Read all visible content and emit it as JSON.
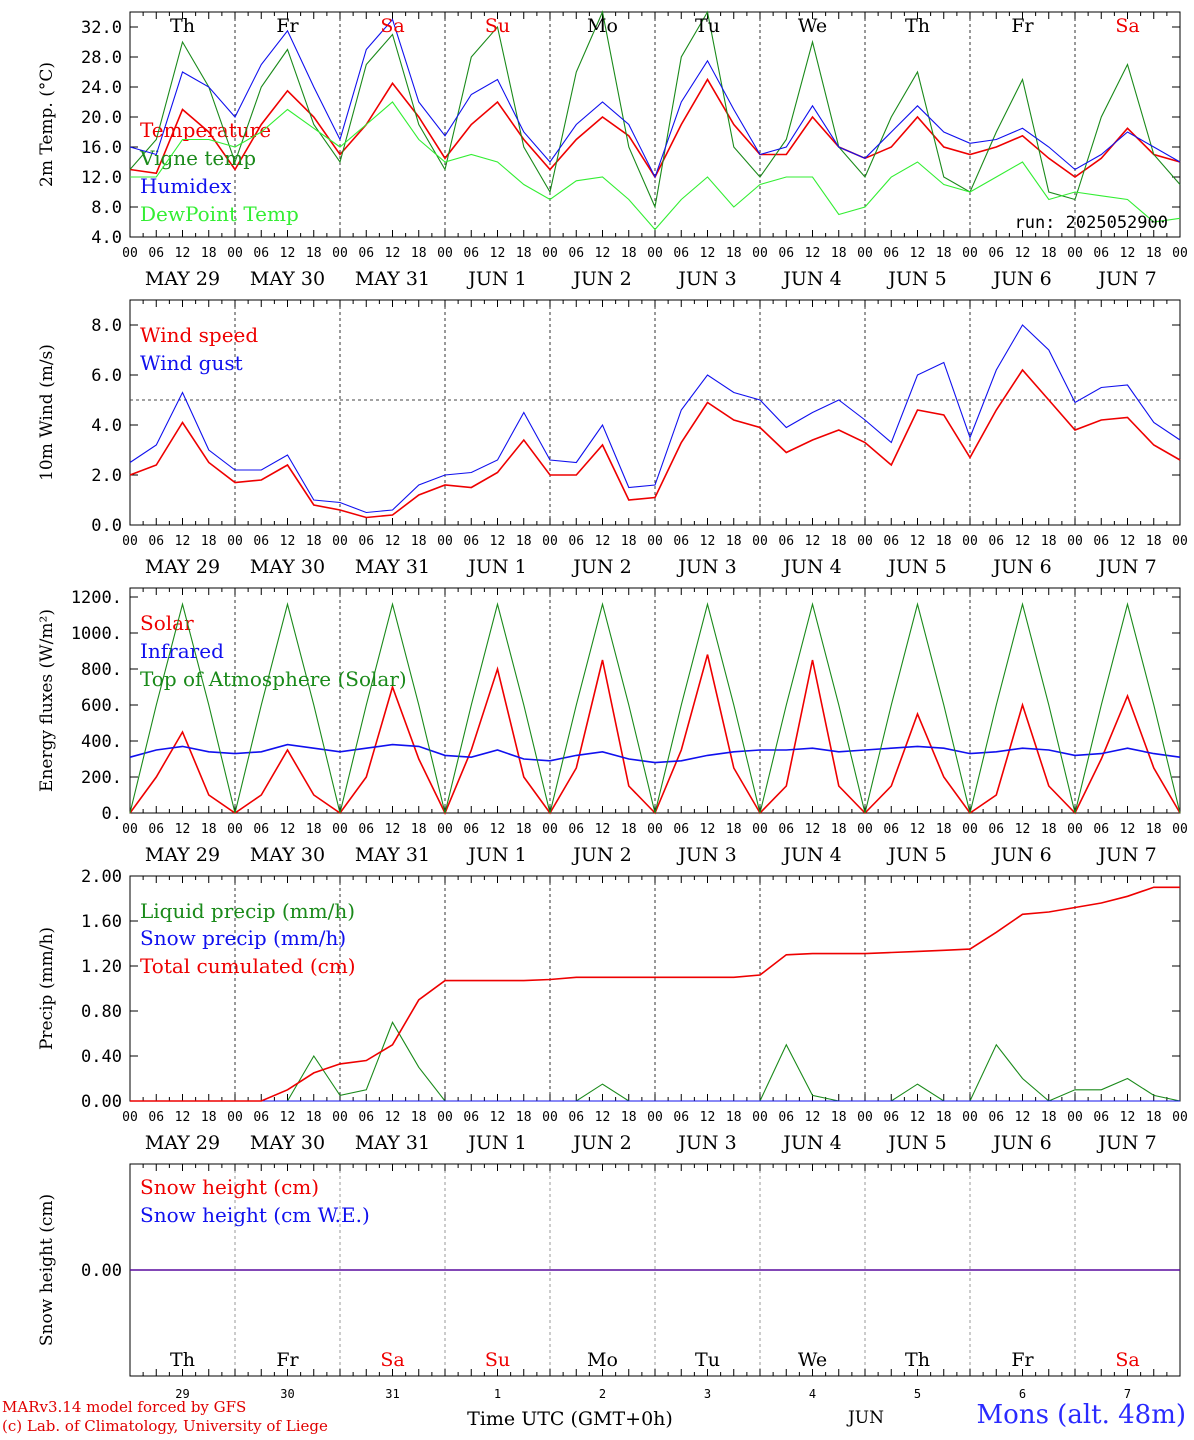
{
  "colors": {
    "red": "#ee0000",
    "green": "#1a8a1a",
    "blue": "#1010ee",
    "lime": "#33ee33",
    "dash": "#555555"
  },
  "days": [
    "Th",
    "Fr",
    "Sa",
    "Su",
    "Mo",
    "Tu",
    "We",
    "Th",
    "Fr",
    "Sa"
  ],
  "weekend_days": [
    2,
    3,
    9
  ],
  "date_labels": [
    "MAY 29",
    "MAY 30",
    "MAY 31",
    "JUN  1",
    "JUN  2",
    "JUN  3",
    "JUN  4",
    "JUN  5",
    "JUN  6",
    "JUN  7"
  ],
  "hour_ticks": [
    "00",
    "06",
    "12",
    "18"
  ],
  "bottom_dates": [
    "29",
    "30",
    "31",
    "1",
    "2",
    "3",
    "4",
    "5",
    "6",
    "7"
  ],
  "bottom_month": "JUN",
  "bottom_xlabel": "Time UTC (GMT+0h)",
  "run_label": "run: 2025052900",
  "footer": {
    "line1": "MARv3.14 model forced by GFS",
    "line2": "(c) Lab. of Climatology, University of Liege",
    "station": "Mons (alt. 48m)"
  },
  "chart_data": [
    {
      "type": "line",
      "ylabel": "2m Temp. (°C)",
      "ylim": [
        4,
        34
      ],
      "yticks": [
        "4.0",
        "8.0",
        "12.0",
        "16.0",
        "20.0",
        "24.0",
        "28.0",
        "32.0"
      ],
      "x": [
        0,
        6,
        12,
        18,
        24,
        30,
        36,
        42,
        48,
        54,
        60,
        66,
        72,
        78,
        84,
        90,
        96,
        102,
        108,
        114,
        120,
        126,
        132,
        138,
        144,
        150,
        156,
        162,
        168,
        174,
        180,
        186,
        192,
        198,
        204,
        210,
        216,
        222,
        228,
        234,
        240
      ],
      "series": [
        {
          "name": "Temperature",
          "color": "red",
          "values": [
            13,
            12.5,
            21,
            18,
            13,
            19,
            23.5,
            20,
            15,
            19,
            24.5,
            20,
            14.5,
            19,
            22,
            17,
            13,
            17,
            20,
            17.5,
            12,
            19,
            25,
            19,
            15,
            15,
            20,
            16,
            14.5,
            16,
            20,
            16,
            15,
            16,
            17.5,
            14.5,
            12,
            14.5,
            18.5,
            15,
            14
          ]
        },
        {
          "name": "Vigne temp",
          "color": "green",
          "values": [
            13,
            17,
            30,
            24,
            14,
            24,
            29,
            19,
            14,
            27,
            31,
            19,
            13,
            28,
            32,
            16,
            10,
            26,
            34,
            16,
            8,
            28,
            34,
            16,
            12,
            17,
            30,
            16,
            12,
            20,
            26,
            12,
            10,
            18,
            25,
            10,
            9,
            20,
            27,
            15,
            11
          ]
        },
        {
          "name": "Humidex",
          "color": "blue",
          "values": [
            16,
            15,
            26,
            24,
            20,
            27,
            31.5,
            24,
            17,
            29,
            33,
            22,
            17.5,
            23,
            25,
            18,
            14,
            19,
            22,
            19,
            12,
            22,
            27.5,
            21,
            15,
            16,
            21.5,
            16,
            14.5,
            18,
            21.5,
            18,
            16.5,
            17,
            18.5,
            16,
            13,
            15,
            18,
            16,
            14
          ]
        },
        {
          "name": "DewPoint Temp",
          "color": "lime",
          "values": [
            12,
            12,
            17,
            17,
            16,
            18,
            21,
            18.5,
            16,
            19,
            22,
            17,
            14,
            15,
            14,
            11,
            9,
            11.5,
            12,
            9,
            5,
            9,
            12,
            8,
            11,
            12,
            12,
            7,
            8,
            12,
            14,
            11,
            10,
            12,
            14,
            9,
            10,
            9.5,
            9,
            6,
            6.5
          ]
        }
      ],
      "run": "run: 2025052900"
    },
    {
      "type": "line",
      "ylabel": "10m Wind (m/s)",
      "ylim": [
        0,
        9
      ],
      "hline": 5,
      "yticks": [
        "0.0",
        "2.0",
        "4.0",
        "6.0",
        "8.0"
      ],
      "x": [
        0,
        6,
        12,
        18,
        24,
        30,
        36,
        42,
        48,
        54,
        60,
        66,
        72,
        78,
        84,
        90,
        96,
        102,
        108,
        114,
        120,
        126,
        132,
        138,
        144,
        150,
        156,
        162,
        168,
        174,
        180,
        186,
        192,
        198,
        204,
        210,
        216,
        222,
        228,
        234,
        240
      ],
      "series": [
        {
          "name": "Wind speed",
          "color": "red",
          "values": [
            2,
            2.4,
            4.1,
            2.5,
            1.7,
            1.8,
            2.4,
            0.8,
            0.6,
            0.3,
            0.4,
            1.2,
            1.6,
            1.5,
            2.1,
            3.4,
            2.0,
            2.0,
            3.2,
            1.0,
            1.1,
            3.3,
            4.9,
            4.2,
            3.9,
            2.9,
            3.4,
            3.8,
            3.3,
            2.4,
            4.6,
            4.4,
            2.7,
            4.6,
            6.2,
            5.0,
            3.8,
            4.2,
            4.3,
            3.2,
            2.6
          ]
        },
        {
          "name": "Wind gust",
          "color": "blue",
          "values": [
            2.5,
            3.2,
            5.3,
            3.0,
            2.2,
            2.2,
            2.8,
            1.0,
            0.9,
            0.5,
            0.6,
            1.6,
            2.0,
            2.1,
            2.6,
            4.5,
            2.6,
            2.5,
            4.0,
            1.5,
            1.6,
            4.6,
            6.0,
            5.3,
            5.0,
            3.9,
            4.5,
            5.0,
            4.2,
            3.3,
            6.0,
            6.5,
            3.5,
            6.2,
            8.0,
            7.0,
            4.9,
            5.5,
            5.6,
            4.1,
            3.4
          ]
        }
      ]
    },
    {
      "type": "line",
      "ylabel": "Energy fluxes (W/m²)",
      "ylim": [
        0,
        1250
      ],
      "yticks": [
        "0.",
        "200.",
        "400.",
        "600.",
        "800.",
        "1000.",
        "1200."
      ],
      "x": [
        0,
        6,
        12,
        18,
        24,
        30,
        36,
        42,
        48,
        54,
        60,
        66,
        72,
        78,
        84,
        90,
        96,
        102,
        108,
        114,
        120,
        126,
        132,
        138,
        144,
        150,
        156,
        162,
        168,
        174,
        180,
        186,
        192,
        198,
        204,
        210,
        216,
        222,
        228,
        234,
        240
      ],
      "series": [
        {
          "name": "Solar",
          "color": "red",
          "values": [
            0,
            200,
            450,
            100,
            0,
            100,
            350,
            100,
            0,
            200,
            700,
            300,
            0,
            350,
            800,
            200,
            0,
            250,
            850,
            150,
            0,
            350,
            880,
            250,
            0,
            150,
            850,
            150,
            0,
            150,
            550,
            200,
            0,
            100,
            600,
            150,
            0,
            300,
            650,
            250,
            0
          ]
        },
        {
          "name": "Infrared",
          "color": "blue",
          "values": [
            310,
            350,
            370,
            340,
            330,
            340,
            380,
            360,
            340,
            360,
            380,
            370,
            320,
            310,
            350,
            300,
            290,
            320,
            340,
            300,
            280,
            290,
            320,
            340,
            350,
            350,
            360,
            340,
            350,
            360,
            370,
            360,
            330,
            340,
            360,
            350,
            320,
            330,
            360,
            330,
            310
          ]
        },
        {
          "name": "Top of Atmosphere (Solar)",
          "color": "green",
          "values": [
            0,
            600,
            1160,
            600,
            0,
            600,
            1160,
            600,
            0,
            600,
            1160,
            600,
            0,
            600,
            1160,
            600,
            0,
            600,
            1160,
            600,
            0,
            600,
            1160,
            600,
            0,
            600,
            1160,
            600,
            0,
            600,
            1160,
            600,
            0,
            600,
            1160,
            600,
            0,
            600,
            1160,
            600,
            0
          ]
        }
      ]
    },
    {
      "type": "line",
      "ylabel": "Precip (mm/h)",
      "ylim": [
        0,
        2
      ],
      "yticks": [
        "0.00",
        "0.40",
        "0.80",
        "1.20",
        "1.60",
        "2.00"
      ],
      "x": [
        0,
        6,
        12,
        18,
        24,
        30,
        36,
        42,
        48,
        54,
        60,
        66,
        72,
        78,
        84,
        90,
        96,
        102,
        108,
        114,
        120,
        126,
        132,
        138,
        144,
        150,
        156,
        162,
        168,
        174,
        180,
        186,
        192,
        198,
        204,
        210,
        216,
        222,
        228,
        234,
        240
      ],
      "series": [
        {
          "name": "Liquid precip (mm/h)",
          "color": "green",
          "values": [
            0,
            0,
            0,
            0,
            0,
            0,
            0,
            0.4,
            0.05,
            0.1,
            0.7,
            0.3,
            0,
            0,
            0,
            0,
            0,
            0,
            0.15,
            0,
            0,
            0,
            0,
            0,
            0,
            0.5,
            0.05,
            0,
            0,
            0,
            0.15,
            0,
            0,
            0.5,
            0.2,
            0,
            0.1,
            0.1,
            0.2,
            0.05,
            0
          ]
        },
        {
          "name": "Snow precip (mm/h)",
          "color": "blue",
          "values": [
            0,
            0,
            0,
            0,
            0,
            0,
            0,
            0,
            0,
            0,
            0,
            0,
            0,
            0,
            0,
            0,
            0,
            0,
            0,
            0,
            0,
            0,
            0,
            0,
            0,
            0,
            0,
            0,
            0,
            0,
            0,
            0,
            0,
            0,
            0,
            0,
            0,
            0,
            0,
            0,
            0
          ]
        },
        {
          "name": "Total cumulated (cm)",
          "color": "red",
          "values": [
            0,
            0,
            0,
            0,
            0,
            0,
            0.1,
            0.25,
            0.33,
            0.36,
            0.5,
            0.9,
            1.07,
            1.07,
            1.07,
            1.07,
            1.08,
            1.1,
            1.1,
            1.1,
            1.1,
            1.1,
            1.1,
            1.1,
            1.12,
            1.3,
            1.31,
            1.31,
            1.31,
            1.32,
            1.33,
            1.34,
            1.35,
            1.5,
            1.66,
            1.68,
            1.72,
            1.76,
            1.82,
            1.9,
            1.9
          ]
        }
      ]
    },
    {
      "type": "line",
      "ylabel": "Snow height (cm)",
      "ylim": [
        -1,
        1
      ],
      "yticks": [
        "0.00"
      ],
      "x": [
        0,
        240
      ],
      "series": [
        {
          "name": "Snow height (cm)",
          "color": "red",
          "values": [
            0,
            0
          ]
        },
        {
          "name": "Snow height (cm W.E.)",
          "color": "blue",
          "values": [
            0,
            0
          ]
        }
      ]
    }
  ]
}
